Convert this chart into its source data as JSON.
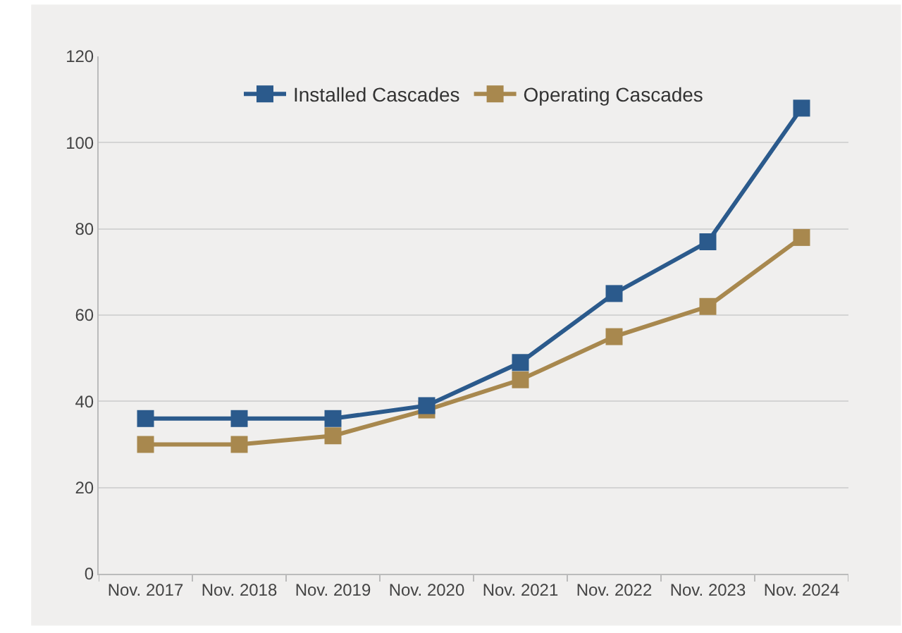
{
  "chart_data": {
    "type": "line",
    "categories": [
      "Nov. 2017",
      "Nov. 2018",
      "Nov. 2019",
      "Nov. 2020",
      "Nov. 2021",
      "Nov. 2022",
      "Nov. 2023",
      "Nov. 2024"
    ],
    "series": [
      {
        "name": "Installed Cascades",
        "color": "#2b5a8c",
        "values": [
          36,
          36,
          36,
          39,
          49,
          65,
          77,
          108
        ]
      },
      {
        "name": "Operating Cascades",
        "color": "#a8884e",
        "values": [
          30,
          30,
          32,
          38,
          45,
          55,
          62,
          78
        ]
      }
    ],
    "ylim": [
      0,
      120
    ],
    "yticks": [
      0,
      20,
      40,
      60,
      80,
      100,
      120
    ],
    "grid": "y",
    "legend": "top",
    "marker": "square",
    "line_style": "solid"
  }
}
